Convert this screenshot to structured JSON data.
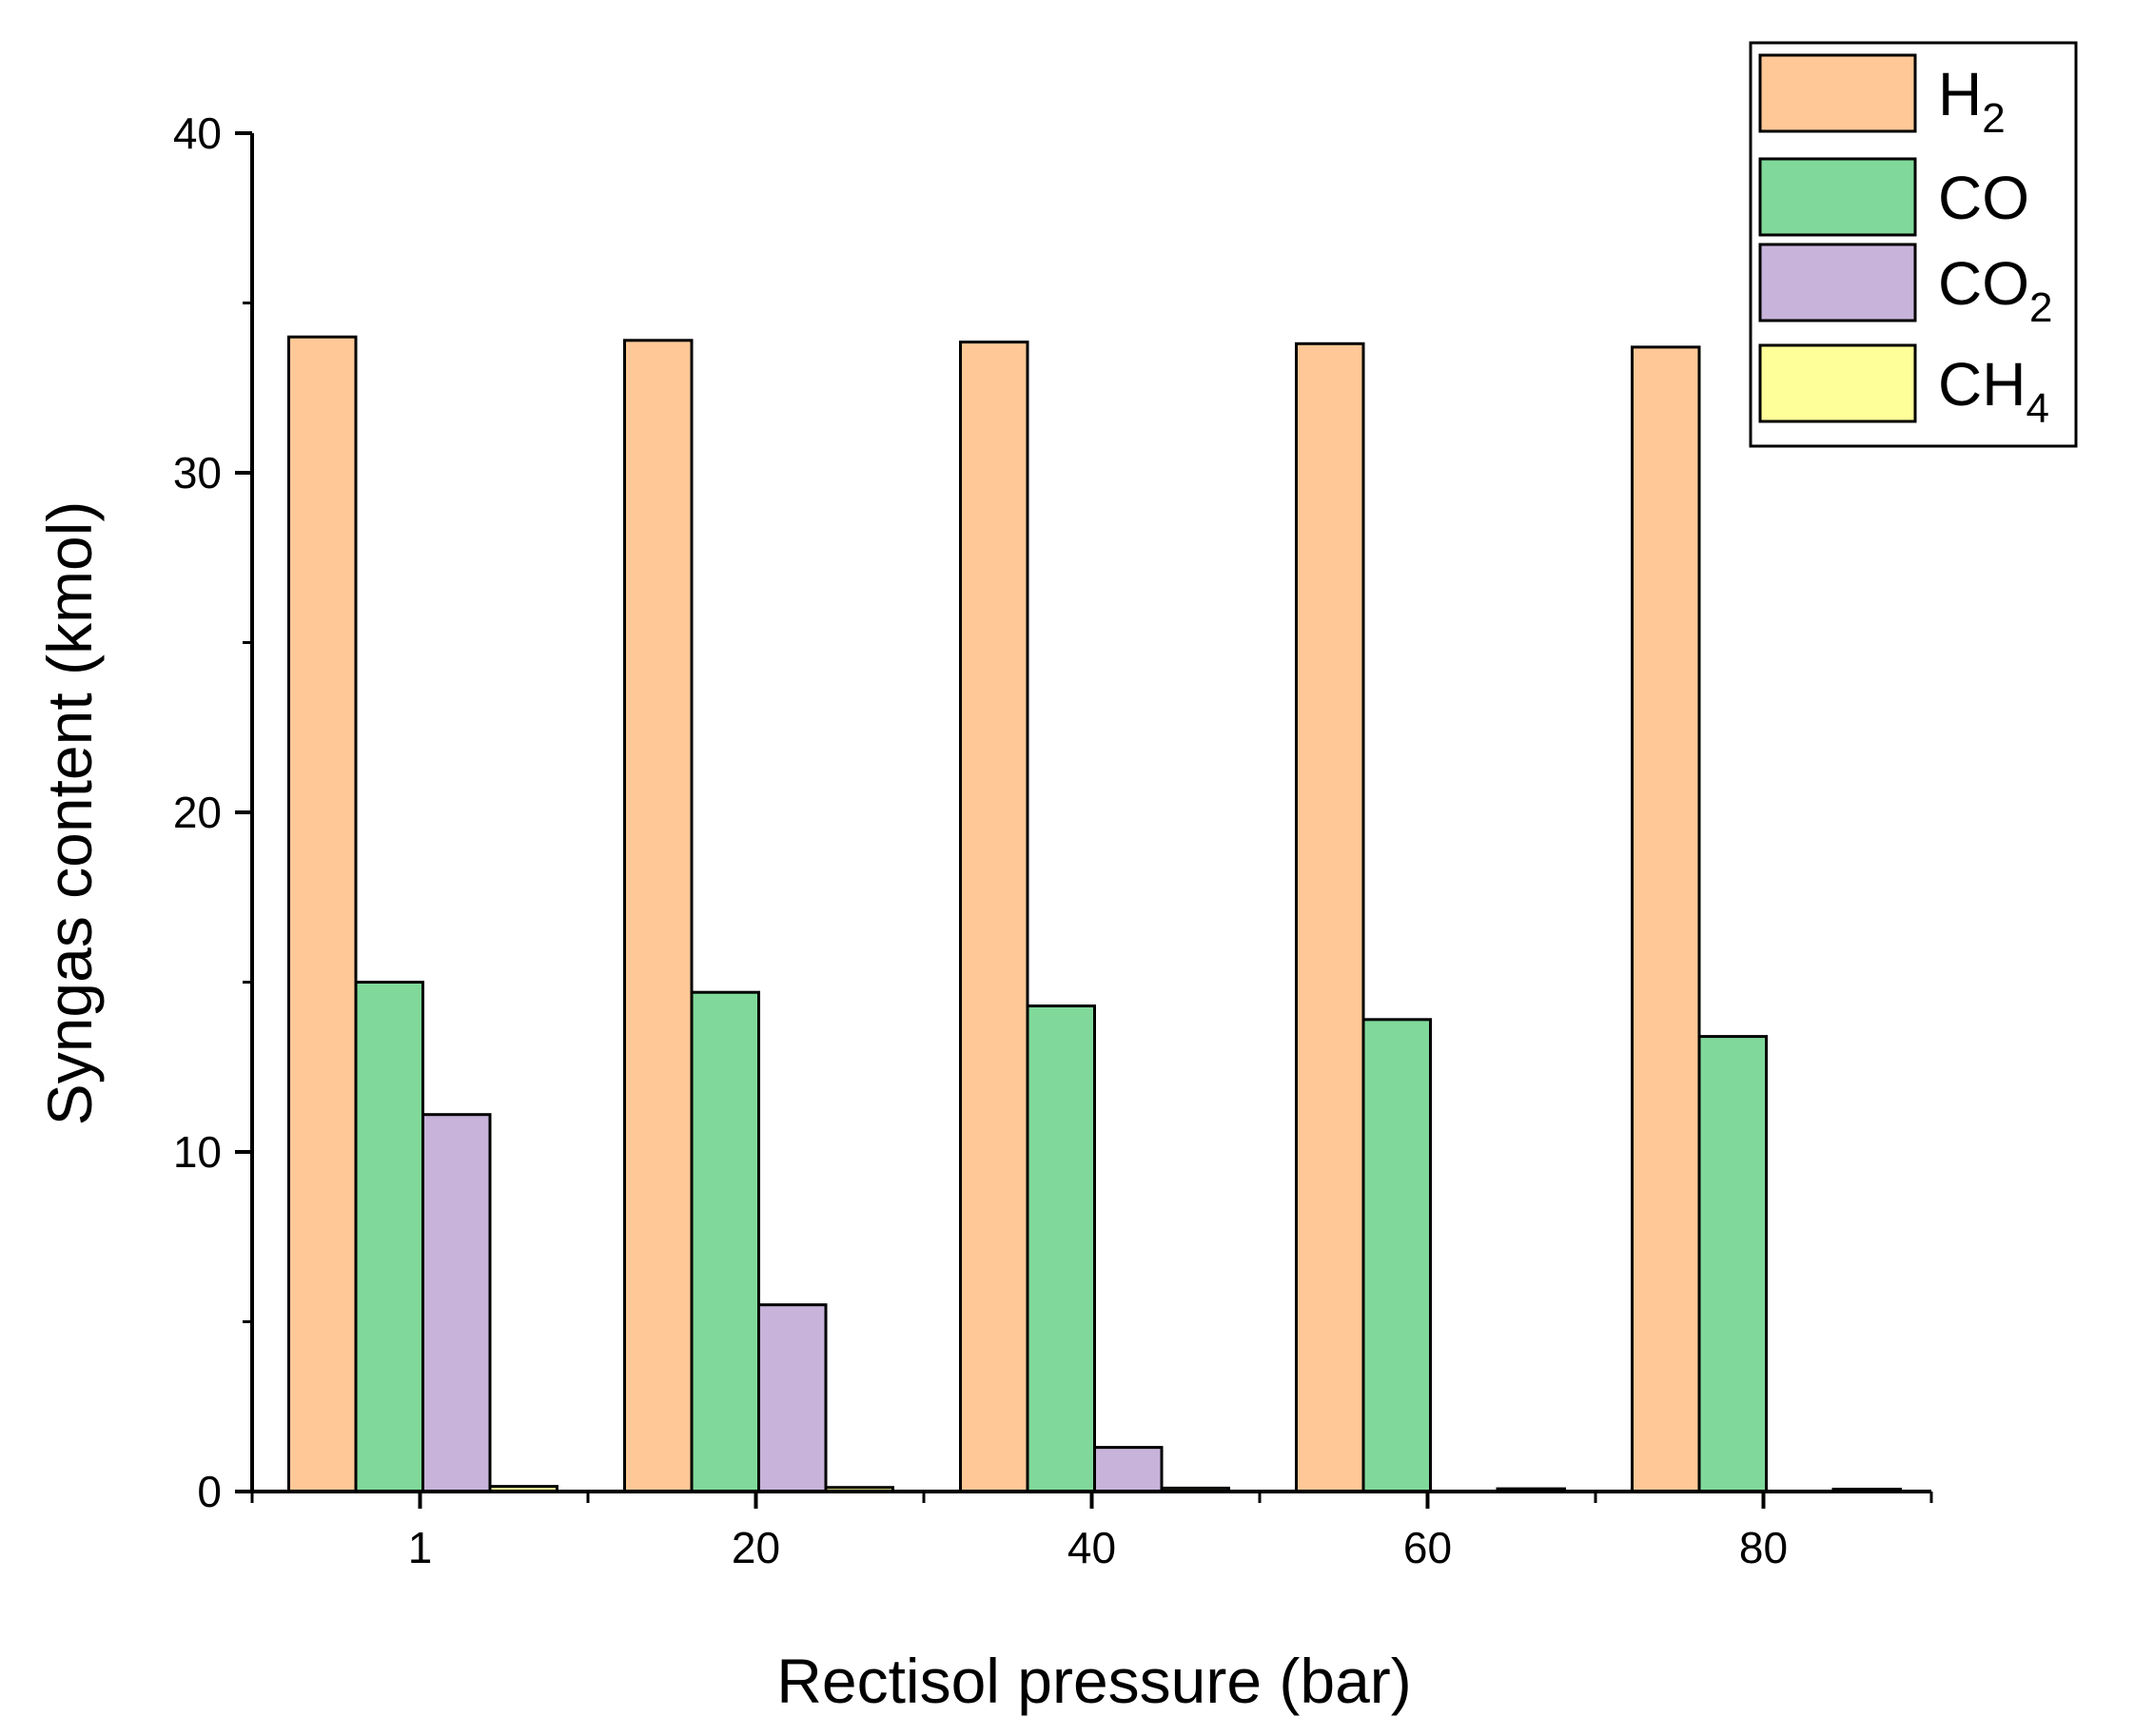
{
  "chart_data": {
    "type": "bar",
    "title": "",
    "xlabel": "Rectisol pressure (bar)",
    "ylabel": "Syngas content (kmol)",
    "categories": [
      "1",
      "20",
      "40",
      "60",
      "80"
    ],
    "ylim": [
      0,
      40
    ],
    "yticks": [
      "0",
      "10",
      "20",
      "30",
      "40"
    ],
    "legend_position": "top-right",
    "series": [
      {
        "name": "H2",
        "label_main": "H",
        "label_sub": "2",
        "color": "#FFC896",
        "values": [
          34.0,
          33.9,
          33.85,
          33.8,
          33.7
        ]
      },
      {
        "name": "CO",
        "label_main": "CO",
        "label_sub": "",
        "color": "#80D99A",
        "values": [
          15.0,
          14.7,
          14.3,
          13.9,
          13.4
        ]
      },
      {
        "name": "CO2",
        "label_main": "CO",
        "label_sub": "2",
        "color": "#C8B4DA",
        "values": [
          11.1,
          5.5,
          1.3,
          0,
          0
        ]
      },
      {
        "name": "CH4",
        "label_main": "CH",
        "label_sub": "4",
        "color": "#FFFF99",
        "values": [
          0.15,
          0.12,
          0.1,
          0.08,
          0.07
        ]
      }
    ]
  }
}
